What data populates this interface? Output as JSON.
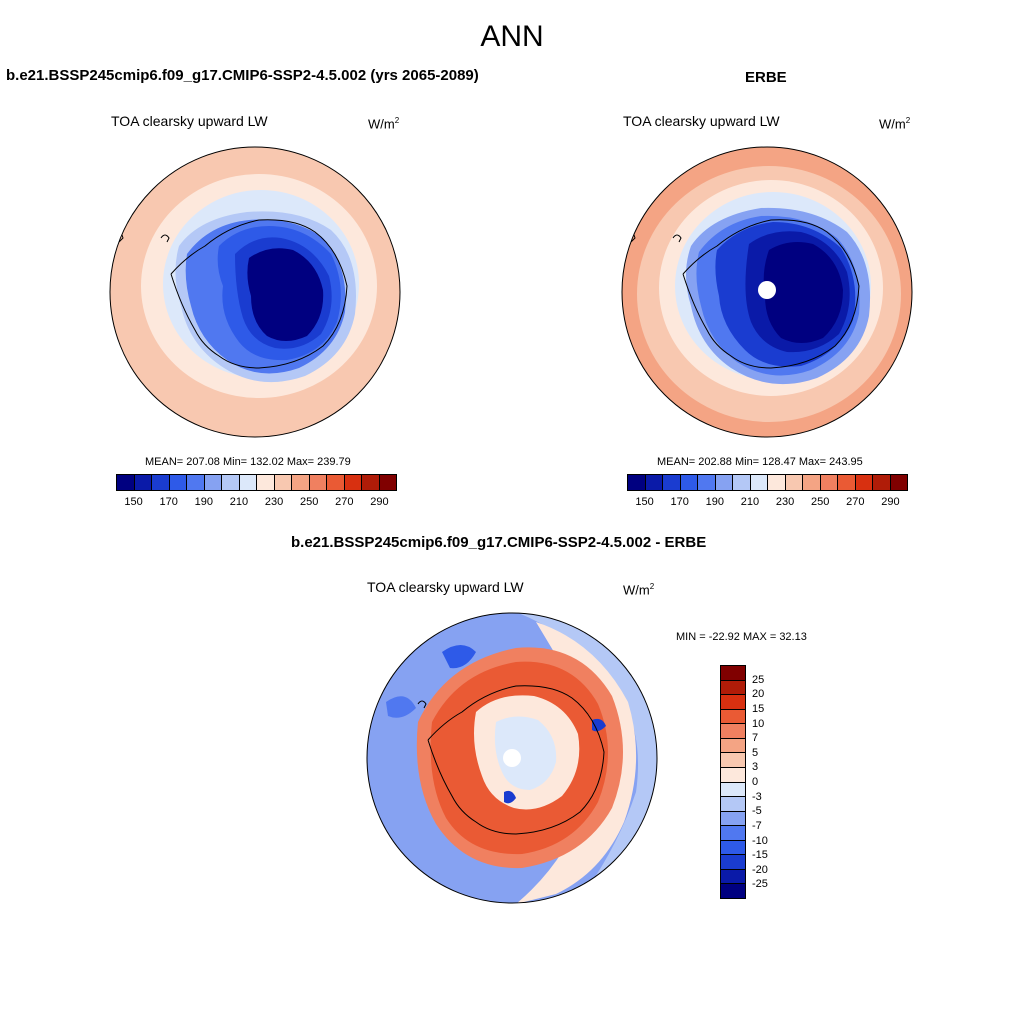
{
  "figure_title": "ANN",
  "panels": {
    "model": {
      "case_title": "b.e21.BSSP245cmip6.f09_g17.CMIP6-SSP2-4.5.002 (yrs 2065-2089)",
      "variable_title": "TOA clearsky upward LW",
      "units_base": "W/m",
      "units_exp": "2",
      "stats": "MEAN= 207.08  Min= 132.02  Max= 239.79"
    },
    "obs": {
      "case_title": "ERBE",
      "variable_title": "TOA clearsky upward LW",
      "units_base": "W/m",
      "units_exp": "2",
      "stats": "MEAN= 202.88  Min= 128.47  Max= 243.95"
    },
    "diff": {
      "case_title": "b.e21.BSSP245cmip6.f09_g17.CMIP6-SSP2-4.5.002 - ERBE",
      "variable_title": "TOA clearsky upward LW",
      "units_base": "W/m",
      "units_exp": "2",
      "stats": "MIN = -22.92 MAX =  32.13"
    }
  },
  "colorbar_abs": {
    "colors": [
      "#000080",
      "#0a1aa8",
      "#1a3cd0",
      "#2e5ae8",
      "#5078f0",
      "#86a2f2",
      "#b4c8f6",
      "#dce8fa",
      "#fde8dc",
      "#f8c8b0",
      "#f4a484",
      "#f08060",
      "#ea5a34",
      "#d83010",
      "#b01c08",
      "#800000"
    ],
    "labels": [
      "150",
      "170",
      "190",
      "210",
      "230",
      "250",
      "270",
      "290"
    ]
  },
  "colorbar_diff": {
    "colors": [
      "#800000",
      "#b01c08",
      "#d83010",
      "#ea5a34",
      "#f08060",
      "#f4a484",
      "#f8c8b0",
      "#fde8dc",
      "#dce8fa",
      "#b4c8f6",
      "#86a2f2",
      "#5078f0",
      "#2e5ae8",
      "#1a3cd0",
      "#0a1aa8",
      "#000080"
    ],
    "labels": [
      "25",
      "20",
      "15",
      "10",
      "7",
      "5",
      "3",
      "0",
      "-3",
      "-5",
      "-7",
      "-10",
      "-15",
      "-20",
      "-25"
    ]
  }
}
